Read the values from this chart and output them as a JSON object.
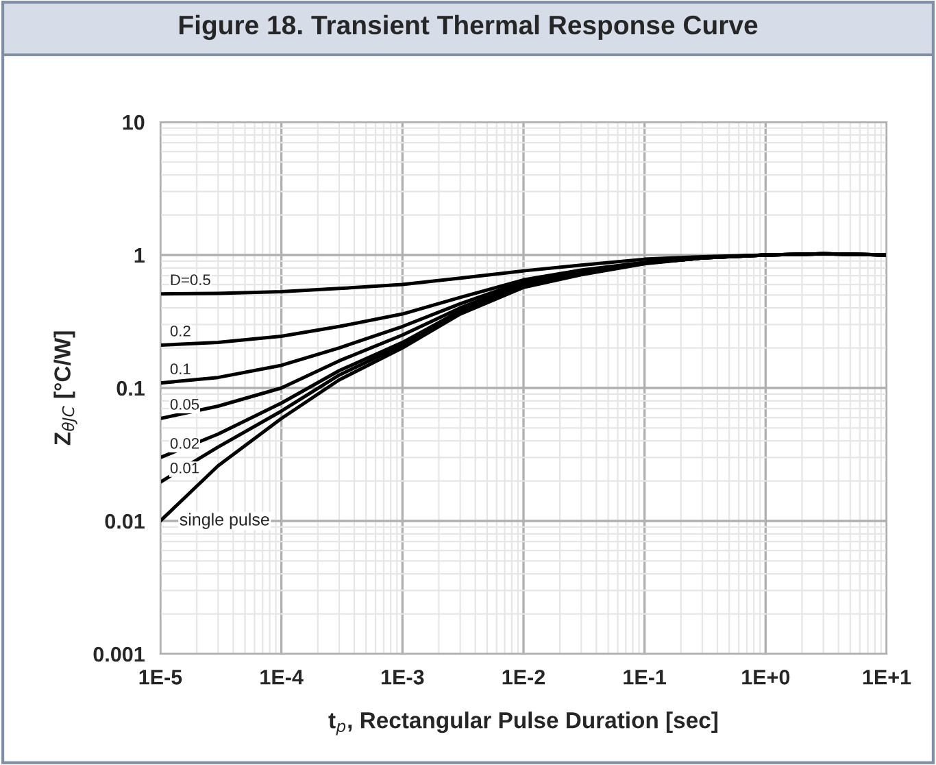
{
  "chart_data": {
    "type": "line",
    "title": "Figure 18. Transient Thermal Response Curve",
    "xlabel": "t$_{p}$, Rectangular Pulse Duration [sec]",
    "ylabel": "Z$_{θJC}$ [°C/W]",
    "log": "xy",
    "grid": true,
    "legend": false,
    "marker": "none",
    "line_style": "solid",
    "xlim": [
      1e-05,
      10
    ],
    "ylim": [
      0.001,
      10
    ],
    "xticks": [
      {
        "value": 1e-05,
        "label": "1E-5"
      },
      {
        "value": 0.0001,
        "label": "1E-4"
      },
      {
        "value": 0.001,
        "label": "1E-3"
      },
      {
        "value": 0.01,
        "label": "1E-2"
      },
      {
        "value": 0.1,
        "label": "1E-1"
      },
      {
        "value": 1,
        "label": "1E+0"
      },
      {
        "value": 10,
        "label": "1E+1"
      }
    ],
    "yticks": [
      0.001,
      0.01,
      0.1,
      1,
      10
    ],
    "x": [
      1e-05,
      3e-05,
      0.0001,
      0.0003,
      0.001,
      0.003,
      0.01,
      0.03,
      0.1,
      0.3,
      1,
      3,
      10
    ],
    "series": [
      {
        "name": "D=0.5",
        "color": "#000000",
        "values": [
          0.51,
          0.515,
          0.53,
          0.56,
          0.6,
          0.67,
          0.76,
          0.84,
          0.93,
          0.97,
          1.0,
          1.02,
          1.0
        ]
      },
      {
        "name": "0.2",
        "color": "#000000",
        "values": [
          0.21,
          0.22,
          0.245,
          0.29,
          0.36,
          0.48,
          0.65,
          0.77,
          0.88,
          0.96,
          1.0,
          1.02,
          1.0
        ]
      },
      {
        "name": "0.1",
        "color": "#000000",
        "values": [
          0.109,
          0.12,
          0.148,
          0.2,
          0.29,
          0.43,
          0.63,
          0.75,
          0.87,
          0.95,
          1.0,
          1.02,
          1.0
        ]
      },
      {
        "name": "0.05",
        "color": "#000000",
        "values": [
          0.059,
          0.073,
          0.1,
          0.16,
          0.25,
          0.4,
          0.61,
          0.74,
          0.87,
          0.95,
          1.0,
          1.02,
          1.0
        ]
      },
      {
        "name": "0.02",
        "color": "#000000",
        "values": [
          0.03,
          0.045,
          0.077,
          0.135,
          0.22,
          0.38,
          0.6,
          0.73,
          0.87,
          0.95,
          1.0,
          1.02,
          1.0
        ]
      },
      {
        "name": "0.01",
        "color": "#000000",
        "values": [
          0.0196,
          0.036,
          0.067,
          0.125,
          0.21,
          0.37,
          0.59,
          0.72,
          0.87,
          0.95,
          1.0,
          1.02,
          1.0
        ]
      },
      {
        "name": "single pulse",
        "color": "#000000",
        "values": [
          0.01,
          0.026,
          0.059,
          0.115,
          0.2,
          0.36,
          0.57,
          0.71,
          0.86,
          0.95,
          1.0,
          1.02,
          1.0
        ]
      }
    ]
  }
}
